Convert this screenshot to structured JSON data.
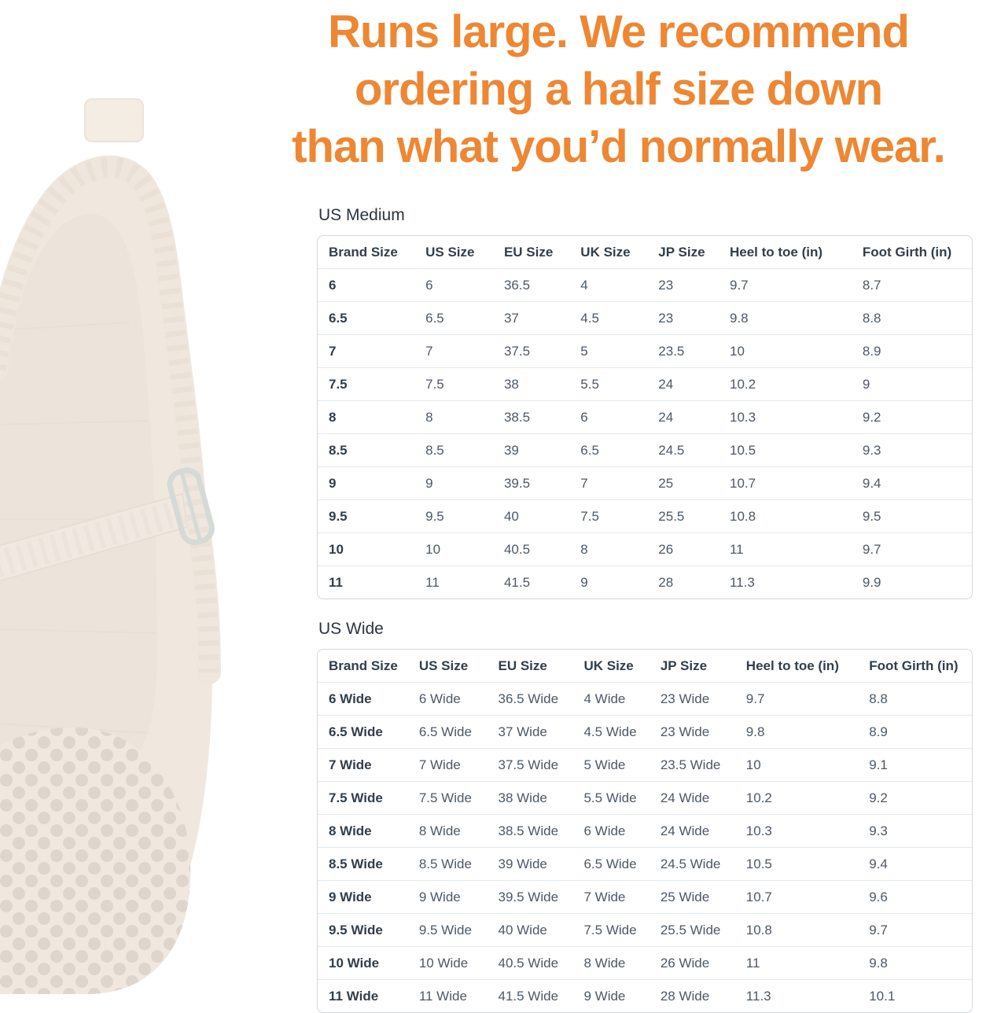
{
  "colors": {
    "accent_orange": "#ee8733",
    "text_dark": "#323e4b",
    "text_body": "#4d5866",
    "table_border": "#d5d9d9",
    "row_divider": "#e6e9eb",
    "shoe_tan": "#dcc8b3",
    "shoe_tan_dark": "#d2bdaa",
    "shoe_hole": "#8a7260",
    "buckle_silver": "#9fa99e"
  },
  "headline": {
    "lines": [
      "Runs large. We recommend",
      "ordering a half size down",
      "than what you’d normally wear."
    ]
  },
  "shoe_photo_name": "faded-braided-woven-mary-jane-flat",
  "size_charts": [
    {
      "title": "US Medium",
      "columns": [
        "Brand Size",
        "US Size",
        "EU Size",
        "UK Size",
        "JP Size",
        "Heel to toe (in)",
        "Foot Girth (in)"
      ],
      "rows": [
        [
          "6",
          "6",
          "36.5",
          "4",
          "23",
          "9.7",
          "8.7"
        ],
        [
          "6.5",
          "6.5",
          "37",
          "4.5",
          "23",
          "9.8",
          "8.8"
        ],
        [
          "7",
          "7",
          "37.5",
          "5",
          "23.5",
          "10",
          "8.9"
        ],
        [
          "7.5",
          "7.5",
          "38",
          "5.5",
          "24",
          "10.2",
          "9"
        ],
        [
          "8",
          "8",
          "38.5",
          "6",
          "24",
          "10.3",
          "9.2"
        ],
        [
          "8.5",
          "8.5",
          "39",
          "6.5",
          "24.5",
          "10.5",
          "9.3"
        ],
        [
          "9",
          "9",
          "39.5",
          "7",
          "25",
          "10.7",
          "9.4"
        ],
        [
          "9.5",
          "9.5",
          "40",
          "7.5",
          "25.5",
          "10.8",
          "9.5"
        ],
        [
          "10",
          "10",
          "40.5",
          "8",
          "26",
          "11",
          "9.7"
        ],
        [
          "11",
          "11",
          "41.5",
          "9",
          "28",
          "11.3",
          "9.9"
        ]
      ]
    },
    {
      "title": "US Wide",
      "columns": [
        "Brand Size",
        "US Size",
        "EU Size",
        "UK Size",
        "JP Size",
        "Heel to toe (in)",
        "Foot Girth (in)"
      ],
      "rows": [
        [
          "6 Wide",
          "6 Wide",
          "36.5 Wide",
          "4 Wide",
          "23 Wide",
          "9.7",
          "8.8"
        ],
        [
          "6.5 Wide",
          "6.5 Wide",
          "37 Wide",
          "4.5 Wide",
          "23 Wide",
          "9.8",
          "8.9"
        ],
        [
          "7 Wide",
          "7 Wide",
          "37.5 Wide",
          "5 Wide",
          "23.5 Wide",
          "10",
          "9.1"
        ],
        [
          "7.5 Wide",
          "7.5 Wide",
          "38 Wide",
          "5.5 Wide",
          "24 Wide",
          "10.2",
          "9.2"
        ],
        [
          "8 Wide",
          "8 Wide",
          "38.5 Wide",
          "6 Wide",
          "24 Wide",
          "10.3",
          "9.3"
        ],
        [
          "8.5 Wide",
          "8.5 Wide",
          "39 Wide",
          "6.5 Wide",
          "24.5 Wide",
          "10.5",
          "9.4"
        ],
        [
          "9 Wide",
          "9 Wide",
          "39.5 Wide",
          "7 Wide",
          "25 Wide",
          "10.7",
          "9.6"
        ],
        [
          "9.5 Wide",
          "9.5 Wide",
          "40 Wide",
          "7.5 Wide",
          "25.5 Wide",
          "10.8",
          "9.7"
        ],
        [
          "10 Wide",
          "10 Wide",
          "40.5 Wide",
          "8 Wide",
          "26 Wide",
          "11",
          "9.8"
        ],
        [
          "11 Wide",
          "11 Wide",
          "41.5 Wide",
          "9 Wide",
          "28 Wide",
          "11.3",
          "10.1"
        ]
      ]
    }
  ]
}
